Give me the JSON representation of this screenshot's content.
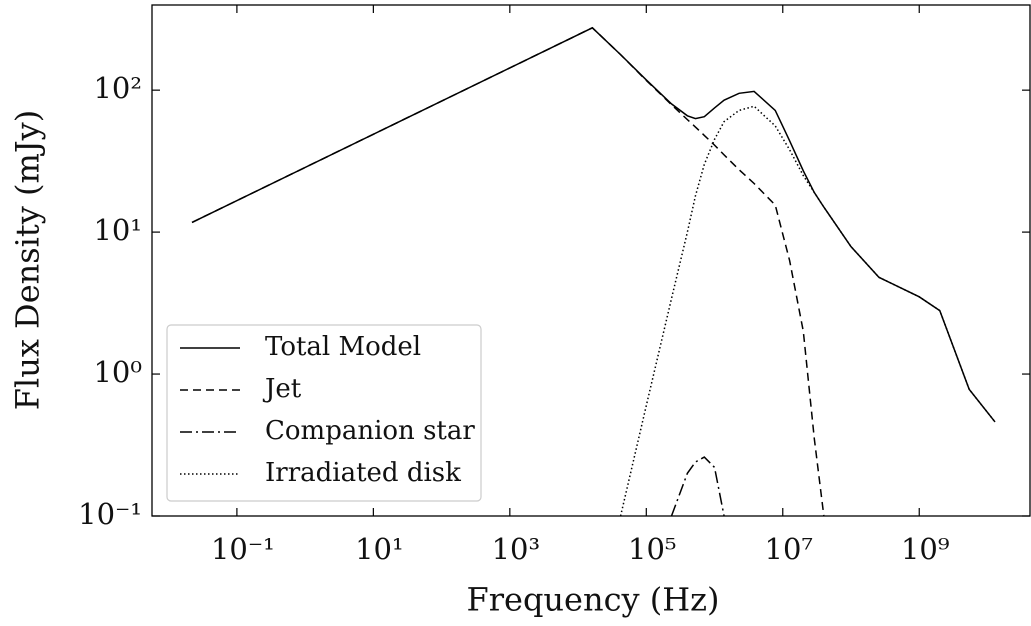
{
  "chart_data": {
    "type": "line",
    "x_label": "Frequency (Hz)",
    "y_label": "Flux Density (mJy)",
    "x_scale": "log",
    "y_scale": "log",
    "legend": "lower left",
    "x": [
      0.022,
      16200,
      42000,
      100000,
      234000,
      400000,
      525000,
      708000,
      1000000,
      1380000,
      2290000,
      3800000,
      7760000,
      12600000,
      20000000,
      29000000,
      40000000,
      100000000,
      257000000,
      1000000000,
      2000000000,
      5400000000,
      12900000000
    ],
    "series": [
      {
        "name": "Total Model",
        "color": "#000000",
        "linestyle": "solid",
        "values": [
          11.7,
          275,
          178,
          118,
          80,
          66,
          63,
          65,
          75,
          85,
          95,
          98,
          72,
          44,
          27,
          19,
          15,
          7.9,
          4.8,
          3.5,
          2.8,
          0.78,
          0.46
        ]
      },
      {
        "name": "Jet",
        "color": "#000000",
        "linestyle": "dashed",
        "values": [
          11.7,
          275,
          178,
          117,
          79,
          62,
          55,
          48,
          41,
          35,
          27.5,
          22,
          15.5,
          6.3,
          2.0,
          0.35,
          0.1,
          null,
          null,
          null,
          null,
          null,
          null
        ]
      },
      {
        "name": "Companion star",
        "color": "#000000",
        "linestyle": "dashdot",
        "values": [
          null,
          null,
          null,
          null,
          0.1,
          0.2,
          0.24,
          0.26,
          0.22,
          0.1,
          null,
          null,
          null,
          null,
          null,
          null,
          null,
          null,
          null,
          null,
          null,
          null,
          null
        ]
      },
      {
        "name": "Irradiated disk",
        "color": "#000000",
        "linestyle": "dotted",
        "values": [
          null,
          null,
          0.1,
          0.6,
          3.4,
          10,
          18,
          30,
          45,
          60,
          72,
          77,
          56,
          38,
          25,
          19,
          15,
          7.9,
          4.8,
          3.5,
          2.8,
          0.78,
          0.46
        ]
      }
    ],
    "xlim": [
      0.0057,
      42000000000
    ],
    "ylim": [
      0.1,
      398
    ],
    "xticks": [
      {
        "value": 0.1,
        "label": "10⁻¹"
      },
      {
        "value": 10,
        "label": "10¹"
      },
      {
        "value": 1000,
        "label": "10³"
      },
      {
        "value": 100000,
        "label": "10⁵"
      },
      {
        "value": 10000000,
        "label": "10⁷"
      },
      {
        "value": 1000000000,
        "label": "10⁹"
      }
    ],
    "yticks": [
      {
        "value": 0.1,
        "label": "10⁻¹"
      },
      {
        "value": 1,
        "label": "10⁰"
      },
      {
        "value": 10,
        "label": "10¹"
      },
      {
        "value": 100,
        "label": "10²"
      }
    ]
  }
}
